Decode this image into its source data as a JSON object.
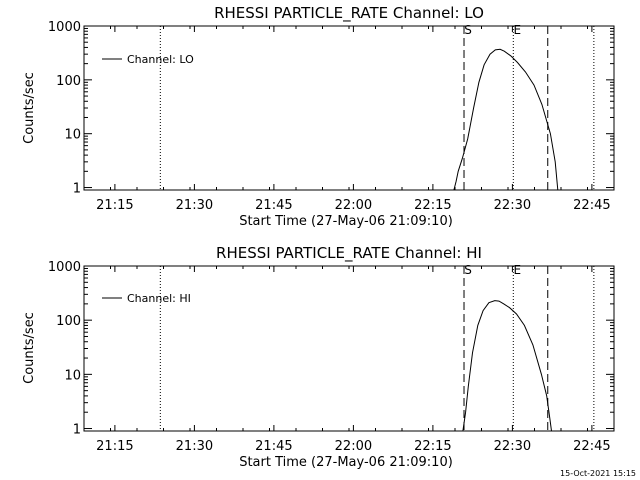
{
  "chart_data": [
    {
      "type": "line",
      "title": "RHESSI PARTICLE_RATE Channel: LO",
      "xlabel": "Start Time (27-May-06 21:09:10)",
      "ylabel": "Counts/sec",
      "yscale": "log",
      "ylim": [
        0.9,
        1000
      ],
      "xlim_minutes_after_start": [
        0,
        100
      ],
      "xtick_labels": [
        "21:15",
        "21:30",
        "21:45",
        "22:00",
        "22:15",
        "22:30",
        "22:45"
      ],
      "xtick_minutes": [
        5.83,
        20.83,
        35.83,
        50.83,
        65.83,
        80.83,
        95.83
      ],
      "ytick_labels": [
        "1",
        "10",
        "100",
        "1000"
      ],
      "ytick_values": [
        1,
        10,
        100,
        1000
      ],
      "legend": "Channel: LO",
      "legend_position": "top-left",
      "markers": [
        {
          "label": "S",
          "minute": 71.7,
          "style": "dashed"
        },
        {
          "label": "E",
          "minute": 81.0,
          "style": "dotted"
        }
      ],
      "dashed_lines_minutes": [
        71.7,
        87.5
      ],
      "dotted_lines_minutes": [
        14.4,
        81.0,
        96.2
      ],
      "series": [
        {
          "name": "Channel: LO",
          "x": [
            69.8,
            70.2,
            70.6,
            71.4,
            72.4,
            73.5,
            74.5,
            75.5,
            76.6,
            77.6,
            78.5,
            79.3,
            80.5,
            81.8,
            83.3,
            84.9,
            86.4,
            88.0,
            88.9,
            89.4
          ],
          "y": [
            0.9,
            1.3,
            2.0,
            3.5,
            8.0,
            30,
            90,
            190,
            300,
            360,
            370,
            340,
            280,
            210,
            140,
            80,
            35,
            10,
            3,
            0.9
          ]
        }
      ]
    },
    {
      "type": "line",
      "title": "RHESSI PARTICLE_RATE Channel: HI",
      "xlabel": "Start Time (27-May-06 21:09:10)",
      "ylabel": "Counts/sec",
      "yscale": "log",
      "ylim": [
        0.9,
        1000
      ],
      "xlim_minutes_after_start": [
        0,
        100
      ],
      "xtick_labels": [
        "21:15",
        "21:30",
        "21:45",
        "22:00",
        "22:15",
        "22:30",
        "22:45"
      ],
      "xtick_minutes": [
        5.83,
        20.83,
        35.83,
        50.83,
        65.83,
        80.83,
        95.83
      ],
      "ytick_labels": [
        "1",
        "10",
        "100",
        "1000"
      ],
      "ytick_values": [
        1,
        10,
        100,
        1000
      ],
      "legend": "Channel: HI",
      "legend_position": "top-left",
      "markers": [
        {
          "label": "S",
          "minute": 71.7,
          "style": "dashed"
        },
        {
          "label": "E",
          "minute": 81.0,
          "style": "dotted"
        }
      ],
      "dashed_lines_minutes": [
        71.7,
        87.5
      ],
      "dotted_lines_minutes": [
        14.4,
        81.0,
        96.2
      ],
      "series": [
        {
          "name": "Channel: HI",
          "x": [
            71.5,
            72.0,
            72.5,
            73.3,
            74.3,
            75.3,
            76.4,
            77.5,
            78.3,
            79.2,
            80.3,
            81.6,
            83.1,
            84.7,
            86.3,
            87.3,
            87.9,
            88.2
          ],
          "y": [
            0.9,
            2.0,
            6,
            25,
            80,
            150,
            210,
            230,
            225,
            200,
            170,
            130,
            80,
            35,
            10,
            4,
            1.5,
            0.9
          ]
        }
      ]
    }
  ],
  "footer": {
    "timestamp": "15-Oct-2021 15:15"
  },
  "colors": {
    "background": "#ffffff",
    "foreground": "#000000"
  }
}
